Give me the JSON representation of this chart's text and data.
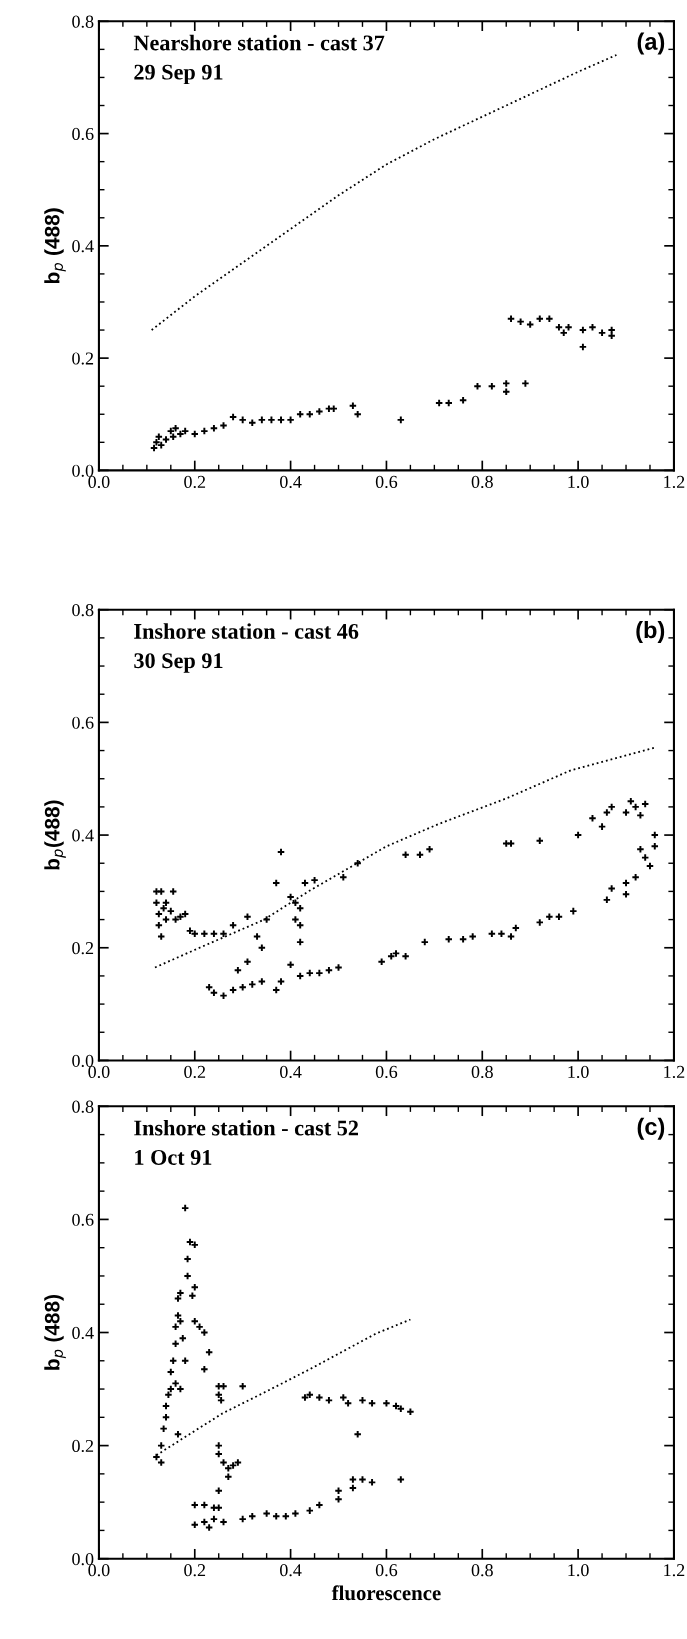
{
  "chart_data": [
    {
      "type": "scatter",
      "title": "Nearshore station - cast 37",
      "subtitle": "29 Sep 91",
      "ylabel": "b$_{p}$ (488)",
      "annotations": [
        "(a)"
      ],
      "marker": "cross",
      "xlim": [
        0.0,
        1.2
      ],
      "ylim": [
        0.0,
        0.8
      ],
      "xticks": [
        {
          "value": 0,
          "label": "0.0"
        },
        {
          "value": 0.05,
          "label": null
        },
        {
          "value": 0.1,
          "label": null
        },
        {
          "value": 0.15,
          "label": null
        },
        0.2,
        {
          "value": 0.25,
          "label": null
        },
        {
          "value": 0.3,
          "label": null
        },
        {
          "value": 0.35,
          "label": null
        },
        0.4,
        {
          "value": 0.45,
          "label": null
        },
        {
          "value": 0.5,
          "label": null
        },
        {
          "value": 0.55,
          "label": null
        },
        0.6,
        {
          "value": 0.65,
          "label": null
        },
        {
          "value": 0.7,
          "label": null
        },
        {
          "value": 0.75,
          "label": null
        },
        0.8,
        {
          "value": 0.85,
          "label": null
        },
        {
          "value": 0.9,
          "label": null
        },
        {
          "value": 0.95,
          "label": null
        },
        {
          "value": 1,
          "label": "1.0"
        },
        {
          "value": 1.05,
          "label": null
        },
        {
          "value": 1.1,
          "label": null
        },
        {
          "value": 1.15,
          "label": null
        },
        1.2
      ],
      "yticks": [
        {
          "value": 0,
          "label": "0.0"
        },
        {
          "value": 0.05,
          "label": null
        },
        {
          "value": 0.1,
          "label": null
        },
        {
          "value": 0.15,
          "label": null
        },
        0.2,
        {
          "value": 0.25,
          "label": null
        },
        {
          "value": 0.3,
          "label": null
        },
        {
          "value": 0.35,
          "label": null
        },
        0.4,
        {
          "value": 0.45,
          "label": null
        },
        {
          "value": 0.5,
          "label": null
        },
        {
          "value": 0.55,
          "label": null
        },
        0.6,
        {
          "value": 0.65,
          "label": null
        },
        {
          "value": 0.7,
          "label": null
        },
        {
          "value": 0.75,
          "label": null
        },
        0.8
      ],
      "series": [
        {
          "color": "#000000",
          "x": [
            0.115,
            0.12,
            0.125,
            0.13,
            0.14,
            0.15,
            0.155,
            0.16,
            0.17,
            0.18,
            0.2,
            0.22,
            0.24,
            0.26,
            0.28,
            0.3,
            0.32,
            0.34,
            0.36,
            0.38,
            0.4,
            0.42,
            0.44,
            0.46,
            0.48,
            0.49,
            0.53,
            0.54,
            0.63,
            0.71,
            0.73,
            0.76,
            0.79,
            0.82,
            0.85,
            0.85,
            0.89,
            0.86,
            0.88,
            0.9,
            0.92,
            0.94,
            0.96,
            0.97,
            0.98,
            1.01,
            1.01,
            1.03,
            1.05,
            1.07,
            1.07
          ],
          "values": [
            0.04,
            0.05,
            0.06,
            0.045,
            0.055,
            0.07,
            0.06,
            0.075,
            0.065,
            0.07,
            0.065,
            0.07,
            0.075,
            0.08,
            0.095,
            0.09,
            0.085,
            0.09,
            0.09,
            0.09,
            0.09,
            0.1,
            0.1,
            0.105,
            0.11,
            0.11,
            0.115,
            0.1,
            0.09,
            0.12,
            0.12,
            0.125,
            0.15,
            0.15,
            0.14,
            0.155,
            0.155,
            0.27,
            0.265,
            0.26,
            0.27,
            0.27,
            0.255,
            0.245,
            0.255,
            0.25,
            0.22,
            0.255,
            0.245,
            0.25,
            0.24
          ]
        },
        {
          "type": "line",
          "color": "#000000",
          "marker": "none",
          "line_style": "dotted",
          "x": [
            0.11,
            0.2,
            0.3,
            0.4,
            0.5,
            0.6,
            0.7,
            0.8,
            0.9,
            1.0,
            1.08
          ],
          "values": [
            0.25,
            0.31,
            0.37,
            0.43,
            0.49,
            0.545,
            0.59,
            0.63,
            0.67,
            0.71,
            0.74
          ]
        }
      ]
    },
    {
      "type": "scatter",
      "title": "Inshore station - cast 46",
      "subtitle": "30 Sep 91",
      "ylabel": "b$_{p}$(488)",
      "annotations": [
        "(b)"
      ],
      "marker": "cross",
      "xlim": [
        0.0,
        1.2
      ],
      "ylim": [
        0.0,
        0.8
      ],
      "xticks": [
        {
          "value": 0,
          "label": "0.0"
        },
        {
          "value": 0.05,
          "label": null
        },
        {
          "value": 0.1,
          "label": null
        },
        {
          "value": 0.15,
          "label": null
        },
        0.2,
        {
          "value": 0.25,
          "label": null
        },
        {
          "value": 0.3,
          "label": null
        },
        {
          "value": 0.35,
          "label": null
        },
        0.4,
        {
          "value": 0.45,
          "label": null
        },
        {
          "value": 0.5,
          "label": null
        },
        {
          "value": 0.55,
          "label": null
        },
        0.6,
        {
          "value": 0.65,
          "label": null
        },
        {
          "value": 0.7,
          "label": null
        },
        {
          "value": 0.75,
          "label": null
        },
        0.8,
        {
          "value": 0.85,
          "label": null
        },
        {
          "value": 0.9,
          "label": null
        },
        {
          "value": 0.95,
          "label": null
        },
        {
          "value": 1,
          "label": "1.0"
        },
        {
          "value": 1.05,
          "label": null
        },
        {
          "value": 1.1,
          "label": null
        },
        {
          "value": 1.15,
          "label": null
        },
        1.2
      ],
      "yticks": [
        {
          "value": 0,
          "label": "0.0"
        },
        {
          "value": 0.05,
          "label": null
        },
        {
          "value": 0.1,
          "label": null
        },
        {
          "value": 0.15,
          "label": null
        },
        0.2,
        {
          "value": 0.25,
          "label": null
        },
        {
          "value": 0.3,
          "label": null
        },
        {
          "value": 0.35,
          "label": null
        },
        0.4,
        {
          "value": 0.45,
          "label": null
        },
        {
          "value": 0.5,
          "label": null
        },
        {
          "value": 0.55,
          "label": null
        },
        0.6,
        {
          "value": 0.65,
          "label": null
        },
        {
          "value": 0.7,
          "label": null
        },
        {
          "value": 0.75,
          "label": null
        },
        0.8
      ],
      "series": [
        {
          "color": "#000000",
          "x": [
            0.23,
            0.24,
            0.26,
            0.28,
            0.3,
            0.32,
            0.34,
            0.37,
            0.38,
            0.4,
            0.42,
            0.44,
            0.46,
            0.48,
            0.5,
            0.59,
            0.61,
            0.62,
            0.64,
            0.68,
            0.73,
            0.76,
            0.78,
            0.82,
            0.84,
            0.86,
            0.87,
            0.92,
            0.94,
            0.96,
            0.99,
            1.06,
            1.07,
            1.1,
            1.1,
            1.12,
            1.13,
            1.14,
            1.15,
            1.16,
            1.16,
            1.0,
            1.03,
            1.05,
            1.06,
            1.07,
            1.1,
            1.11,
            1.12,
            1.14,
            1.13,
            0.85,
            0.86,
            0.92,
            0.64,
            0.67,
            0.69,
            0.54,
            0.51,
            0.45,
            0.43,
            0.4,
            0.41,
            0.42,
            0.41,
            0.42,
            0.42,
            0.37,
            0.38,
            0.35,
            0.33,
            0.34,
            0.31,
            0.29,
            0.31,
            0.28,
            0.26,
            0.24,
            0.22,
            0.19,
            0.2,
            0.18,
            0.17,
            0.16,
            0.155,
            0.15,
            0.12,
            0.12,
            0.125,
            0.125,
            0.13,
            0.13,
            0.135,
            0.14,
            0.14
          ],
          "values": [
            0.13,
            0.12,
            0.115,
            0.125,
            0.13,
            0.135,
            0.14,
            0.125,
            0.14,
            0.17,
            0.15,
            0.155,
            0.155,
            0.16,
            0.165,
            0.175,
            0.185,
            0.19,
            0.185,
            0.21,
            0.215,
            0.215,
            0.22,
            0.225,
            0.225,
            0.22,
            0.235,
            0.245,
            0.255,
            0.255,
            0.265,
            0.285,
            0.305,
            0.295,
            0.315,
            0.325,
            0.375,
            0.36,
            0.345,
            0.38,
            0.4,
            0.4,
            0.43,
            0.415,
            0.44,
            0.45,
            0.44,
            0.46,
            0.45,
            0.455,
            0.435,
            0.385,
            0.385,
            0.39,
            0.365,
            0.365,
            0.375,
            0.35,
            0.325,
            0.32,
            0.315,
            0.29,
            0.28,
            0.27,
            0.25,
            0.24,
            0.21,
            0.315,
            0.37,
            0.25,
            0.22,
            0.2,
            0.175,
            0.16,
            0.255,
            0.24,
            0.225,
            0.225,
            0.225,
            0.23,
            0.225,
            0.26,
            0.255,
            0.25,
            0.3,
            0.265,
            0.3,
            0.28,
            0.26,
            0.24,
            0.22,
            0.3,
            0.27,
            0.28,
            0.25
          ]
        },
        {
          "type": "line",
          "color": "#000000",
          "marker": "none",
          "line_style": "dotted",
          "x": [
            0.117,
            0.21,
            0.345,
            0.437,
            0.6,
            0.71,
            0.85,
            0.985,
            1.16
          ],
          "values": [
            0.165,
            0.2,
            0.25,
            0.3,
            0.38,
            0.42,
            0.465,
            0.515,
            0.555
          ]
        }
      ]
    },
    {
      "type": "scatter",
      "title": "Inshore station - cast 52",
      "subtitle": "1 Oct 91",
      "xlabel": "fluorescence",
      "ylabel": "b$_{p}$ (488)",
      "annotations": [
        "(c)"
      ],
      "marker": "cross",
      "xlim": [
        0.0,
        1.2
      ],
      "ylim": [
        0.0,
        0.8
      ],
      "xticks": [
        {
          "value": 0,
          "label": "0.0"
        },
        {
          "value": 0.05,
          "label": null
        },
        {
          "value": 0.1,
          "label": null
        },
        {
          "value": 0.15,
          "label": null
        },
        0.2,
        {
          "value": 0.25,
          "label": null
        },
        {
          "value": 0.3,
          "label": null
        },
        {
          "value": 0.35,
          "label": null
        },
        0.4,
        {
          "value": 0.45,
          "label": null
        },
        {
          "value": 0.5,
          "label": null
        },
        {
          "value": 0.55,
          "label": null
        },
        0.6,
        {
          "value": 0.65,
          "label": null
        },
        {
          "value": 0.7,
          "label": null
        },
        {
          "value": 0.75,
          "label": null
        },
        0.8,
        {
          "value": 0.85,
          "label": null
        },
        {
          "value": 0.9,
          "label": null
        },
        {
          "value": 0.95,
          "label": null
        },
        {
          "value": 1,
          "label": "1.0"
        },
        {
          "value": 1.05,
          "label": null
        },
        {
          "value": 1.1,
          "label": null
        },
        {
          "value": 1.15,
          "label": null
        },
        1.2
      ],
      "yticks": [
        {
          "value": 0,
          "label": "0.0"
        },
        {
          "value": 0.05,
          "label": null
        },
        {
          "value": 0.1,
          "label": null
        },
        {
          "value": 0.15,
          "label": null
        },
        0.2,
        {
          "value": 0.25,
          "label": null
        },
        {
          "value": 0.3,
          "label": null
        },
        {
          "value": 0.35,
          "label": null
        },
        0.4,
        {
          "value": 0.45,
          "label": null
        },
        {
          "value": 0.5,
          "label": null
        },
        {
          "value": 0.55,
          "label": null
        },
        0.6,
        {
          "value": 0.65,
          "label": null
        },
        {
          "value": 0.7,
          "label": null
        },
        {
          "value": 0.75,
          "label": null
        },
        0.8
      ],
      "series": [
        {
          "color": "#000000",
          "x": [
            0.12,
            0.13,
            0.13,
            0.135,
            0.14,
            0.14,
            0.145,
            0.15,
            0.15,
            0.155,
            0.16,
            0.16,
            0.165,
            0.165,
            0.17,
            0.17,
            0.175,
            0.16,
            0.17,
            0.165,
            0.18,
            0.18,
            0.19,
            0.2,
            0.185,
            0.185,
            0.2,
            0.195,
            0.2,
            0.21,
            0.22,
            0.23,
            0.22,
            0.25,
            0.26,
            0.3,
            0.25,
            0.255,
            0.25,
            0.25,
            0.26,
            0.27,
            0.28,
            0.29,
            0.27,
            0.25,
            0.2,
            0.22,
            0.24,
            0.25,
            0.2,
            0.22,
            0.23,
            0.24,
            0.26,
            0.3,
            0.32,
            0.35,
            0.37,
            0.39,
            0.41,
            0.44,
            0.46,
            0.5,
            0.5,
            0.53,
            0.53,
            0.55,
            0.57,
            0.63,
            0.54,
            0.43,
            0.44,
            0.46,
            0.48,
            0.51,
            0.52,
            0.55,
            0.57,
            0.6,
            0.62,
            0.63,
            0.65
          ],
          "values": [
            0.18,
            0.17,
            0.2,
            0.23,
            0.25,
            0.27,
            0.29,
            0.3,
            0.33,
            0.35,
            0.38,
            0.41,
            0.43,
            0.46,
            0.47,
            0.42,
            0.39,
            0.31,
            0.3,
            0.22,
            0.35,
            0.62,
            0.56,
            0.555,
            0.53,
            0.5,
            0.48,
            0.465,
            0.42,
            0.41,
            0.4,
            0.365,
            0.335,
            0.305,
            0.305,
            0.305,
            0.29,
            0.28,
            0.2,
            0.185,
            0.17,
            0.16,
            0.165,
            0.17,
            0.145,
            0.12,
            0.095,
            0.095,
            0.09,
            0.09,
            0.06,
            0.065,
            0.055,
            0.07,
            0.065,
            0.07,
            0.075,
            0.08,
            0.075,
            0.075,
            0.08,
            0.085,
            0.095,
            0.105,
            0.12,
            0.125,
            0.14,
            0.14,
            0.135,
            0.14,
            0.22,
            0.285,
            0.29,
            0.285,
            0.28,
            0.285,
            0.275,
            0.28,
            0.275,
            0.275,
            0.27,
            0.265,
            0.26
          ]
        },
        {
          "type": "line",
          "color": "#000000",
          "marker": "none",
          "line_style": "dotted",
          "x": [
            0.12,
            0.185,
            0.258,
            0.35,
            0.44,
            0.51,
            0.578,
            0.65
          ],
          "values": [
            0.183,
            0.218,
            0.257,
            0.296,
            0.335,
            0.367,
            0.398,
            0.423
          ]
        }
      ]
    }
  ]
}
